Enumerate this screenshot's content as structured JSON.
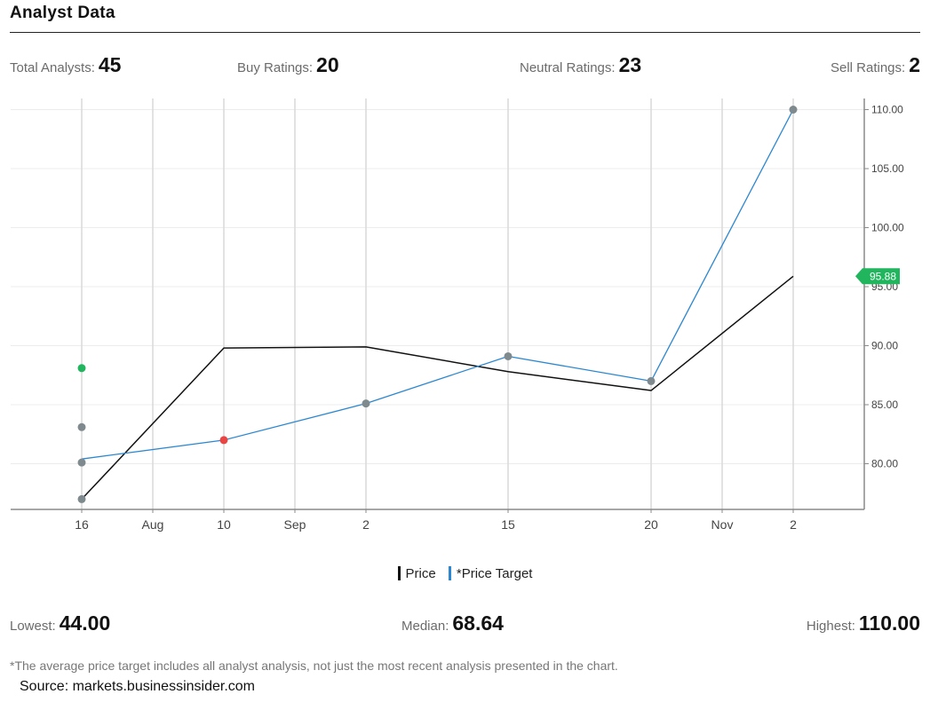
{
  "header": {
    "title": "Analyst Data"
  },
  "stats": {
    "total_label": "Total Analysts:",
    "total_value": "45",
    "buy_label": "Buy Ratings:",
    "buy_value": "20",
    "neutral_label": "Neutral Ratings:",
    "neutral_value": "23",
    "sell_label": "Sell Ratings:",
    "sell_value": "2"
  },
  "summary": {
    "lowest_label": "Lowest:",
    "lowest_value": "44.00",
    "median_label": "Median:",
    "median_value": "68.64",
    "highest_label": "Highest:",
    "highest_value": "110.00"
  },
  "footnote": "*The average price target includes all analyst analysis, not just the most recent analysis presented in the chart.",
  "source": "Source: markets.businessinsider.com",
  "colors": {
    "price": "#111111",
    "target": "#2b87d1",
    "gray_dot": "#7f8a8e",
    "buy_dot": "#21b65e",
    "sell_dot": "#e84545",
    "badge": "#21b65e"
  },
  "chart_data": {
    "type": "line",
    "x_ticks": [
      "16",
      "Aug",
      "10",
      "Sep",
      "2",
      "15",
      "20",
      "Nov",
      "2"
    ],
    "y_ticks": [
      "80.00",
      "85.00",
      "90.00",
      "95.00",
      "100.00",
      "105.00",
      "110.00"
    ],
    "ylim": [
      76,
      111
    ],
    "x_categories": [
      "16",
      "10",
      "2",
      "15",
      "20",
      "2"
    ],
    "series": [
      {
        "name": "Price",
        "color": "#111111",
        "values": [
          77.0,
          89.8,
          89.9,
          87.8,
          86.2,
          95.88
        ]
      },
      {
        "name": "*Price Target",
        "color": "#2b87d1",
        "values": [
          80.4,
          82.0,
          85.1,
          89.1,
          87.0,
          110.0
        ]
      }
    ],
    "rating_dots": [
      {
        "x": "16",
        "y": 88.1,
        "kind": "buy"
      },
      {
        "x": "16",
        "y": 83.1,
        "kind": "hold"
      },
      {
        "x": "16",
        "y": 80.1,
        "kind": "hold"
      },
      {
        "x": "16",
        "y": 77.0,
        "kind": "hold"
      },
      {
        "x": "10",
        "y": 82.0,
        "kind": "sell"
      },
      {
        "x": "2",
        "y": 85.1,
        "kind": "hold"
      },
      {
        "x": "15",
        "y": 89.1,
        "kind": "hold"
      },
      {
        "x": "20",
        "y": 87.0,
        "kind": "hold"
      },
      {
        "x": "2",
        "y": 110.0,
        "kind": "hold"
      }
    ],
    "current_price_label": "95.88",
    "current_price": 95.88
  }
}
